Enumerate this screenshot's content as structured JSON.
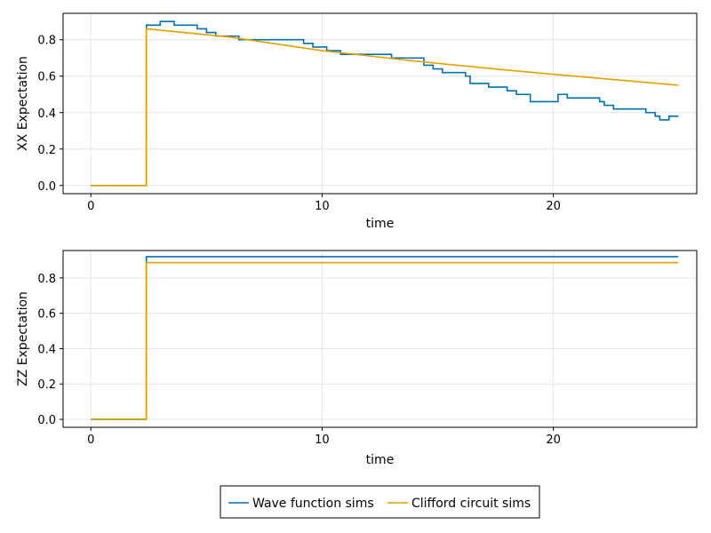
{
  "chart_data": [
    {
      "type": "line",
      "step": true,
      "xlabel": "time",
      "ylabel": "XX Expectation",
      "xlim": [
        -1.2,
        26.2
      ],
      "ylim": [
        -0.045,
        0.945
      ],
      "xticks": [
        0,
        10,
        20
      ],
      "xtick_labels": [
        "0",
        "10",
        "20"
      ],
      "yticks": [
        0.0,
        0.2,
        0.4,
        0.6,
        0.8
      ],
      "ytick_labels": [
        "0.0",
        "0.2",
        "0.4",
        "0.6",
        "0.8"
      ],
      "grid": true,
      "series": [
        {
          "name": "Wave function sims",
          "color": "#0072b2",
          "interpolation": "step",
          "x": [
            0,
            2.4,
            2.4,
            3.0,
            3.0,
            3.6,
            3.6,
            4.6,
            4.6,
            5.0,
            5.0,
            5.4,
            5.4,
            6.4,
            6.4,
            9.2,
            9.2,
            9.6,
            9.6,
            10.2,
            10.2,
            10.8,
            10.8,
            13.0,
            13.0,
            14.4,
            14.4,
            14.8,
            14.8,
            15.2,
            15.2,
            16.2,
            16.2,
            16.4,
            16.4,
            17.2,
            17.2,
            18.0,
            18.0,
            18.4,
            18.4,
            18.8,
            18.8,
            19.0,
            19.0,
            20.2,
            20.2,
            20.6,
            20.6,
            22.0,
            22.0,
            22.2,
            22.2,
            22.6,
            22.6,
            24.0,
            24.0,
            24.4,
            24.4,
            24.6,
            24.6,
            25.0,
            25.0,
            25.4
          ],
          "y": [
            0,
            0,
            0.88,
            0.88,
            0.9,
            0.9,
            0.88,
            0.88,
            0.86,
            0.86,
            0.84,
            0.84,
            0.82,
            0.82,
            0.8,
            0.8,
            0.78,
            0.78,
            0.76,
            0.76,
            0.74,
            0.74,
            0.72,
            0.72,
            0.7,
            0.7,
            0.66,
            0.66,
            0.64,
            0.64,
            0.62,
            0.62,
            0.6,
            0.6,
            0.56,
            0.56,
            0.54,
            0.54,
            0.52,
            0.52,
            0.5,
            0.5,
            0.5,
            0.5,
            0.46,
            0.46,
            0.5,
            0.5,
            0.48,
            0.48,
            0.46,
            0.46,
            0.44,
            0.44,
            0.42,
            0.42,
            0.4,
            0.4,
            0.38,
            0.38,
            0.36,
            0.36,
            0.38,
            0.38
          ]
        },
        {
          "name": "Clifford circuit sims",
          "color": "#e69f00",
          "interpolation": "linear",
          "x": [
            0,
            2.4,
            2.4,
            6,
            10,
            14,
            18,
            22,
            25.4
          ],
          "y": [
            0,
            0,
            0.86,
            0.815,
            0.74,
            0.683,
            0.633,
            0.588,
            0.55
          ]
        }
      ]
    },
    {
      "type": "line",
      "step": true,
      "xlabel": "time",
      "ylabel": "ZZ Expectation",
      "xlim": [
        -1.2,
        26.2
      ],
      "ylim": [
        -0.045,
        0.955
      ],
      "xticks": [
        0,
        10,
        20
      ],
      "xtick_labels": [
        "0",
        "10",
        "20"
      ],
      "yticks": [
        0.0,
        0.2,
        0.4,
        0.6,
        0.8
      ],
      "ytick_labels": [
        "0.0",
        "0.2",
        "0.4",
        "0.6",
        "0.8"
      ],
      "grid": true,
      "series": [
        {
          "name": "Wave function sims",
          "color": "#0072b2",
          "interpolation": "step",
          "x": [
            0,
            2.4,
            2.4,
            25.4
          ],
          "y": [
            0,
            0,
            0.92,
            0.92
          ]
        },
        {
          "name": "Clifford circuit sims",
          "color": "#e69f00",
          "interpolation": "step",
          "x": [
            0,
            2.4,
            2.4,
            25.4
          ],
          "y": [
            0,
            0,
            0.886,
            0.886
          ]
        }
      ]
    }
  ],
  "legend": {
    "placement": "bottom-center",
    "entries": [
      {
        "label": "Wave function sims",
        "color": "#0072b2"
      },
      {
        "label": "Clifford circuit sims",
        "color": "#e69f00"
      }
    ]
  }
}
